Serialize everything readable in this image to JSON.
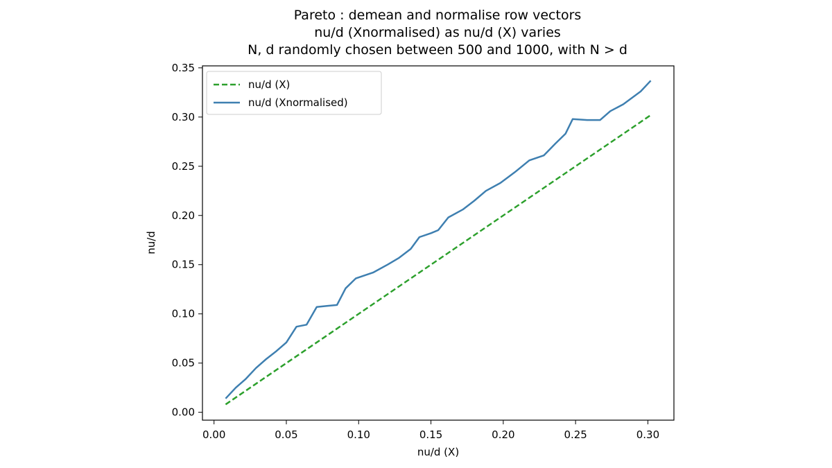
{
  "chart_data": {
    "type": "line",
    "title": [
      "Pareto : demean and normalise row vectors",
      "nu/d (Xnormalised) as nu/d (X) varies",
      "N, d randomly chosen between 500 and 1000, with N > d"
    ],
    "xlabel": "nu/d (X)",
    "ylabel": "nu/d",
    "xlim": [
      -0.008,
      0.318
    ],
    "ylim": [
      -0.008,
      0.352
    ],
    "xticks": [
      0.0,
      0.05,
      0.1,
      0.15,
      0.2,
      0.25,
      0.3
    ],
    "xtick_labels": [
      "0.00",
      "0.05",
      "0.10",
      "0.15",
      "0.20",
      "0.25",
      "0.30"
    ],
    "yticks": [
      0.0,
      0.05,
      0.1,
      0.15,
      0.2,
      0.25,
      0.3,
      0.35
    ],
    "ytick_labels": [
      "0.00",
      "0.05",
      "0.10",
      "0.15",
      "0.20",
      "0.25",
      "0.30",
      "0.35"
    ],
    "grid": false,
    "legend_position": "top-left",
    "series": [
      {
        "name": "nu/d (X)",
        "style": "dashed",
        "color": "#2ca02c",
        "x": [
          0.008,
          0.302
        ],
        "y": [
          0.008,
          0.302
        ]
      },
      {
        "name": "nu/d (Xnormalised)",
        "style": "solid",
        "color": "#3e7fb0",
        "x": [
          0.008,
          0.015,
          0.022,
          0.029,
          0.036,
          0.043,
          0.05,
          0.057,
          0.064,
          0.071,
          0.078,
          0.085,
          0.091,
          0.098,
          0.11,
          0.12,
          0.128,
          0.136,
          0.142,
          0.15,
          0.155,
          0.162,
          0.172,
          0.18,
          0.188,
          0.198,
          0.208,
          0.218,
          0.228,
          0.236,
          0.243,
          0.248,
          0.258,
          0.267,
          0.274,
          0.283,
          0.295,
          0.302
        ],
        "y": [
          0.014,
          0.025,
          0.034,
          0.045,
          0.054,
          0.062,
          0.071,
          0.087,
          0.089,
          0.107,
          0.108,
          0.109,
          0.126,
          0.136,
          0.142,
          0.15,
          0.157,
          0.166,
          0.178,
          0.182,
          0.185,
          0.198,
          0.206,
          0.215,
          0.225,
          0.233,
          0.244,
          0.256,
          0.261,
          0.273,
          0.283,
          0.298,
          0.297,
          0.297,
          0.306,
          0.313,
          0.326,
          0.337
        ]
      }
    ]
  }
}
